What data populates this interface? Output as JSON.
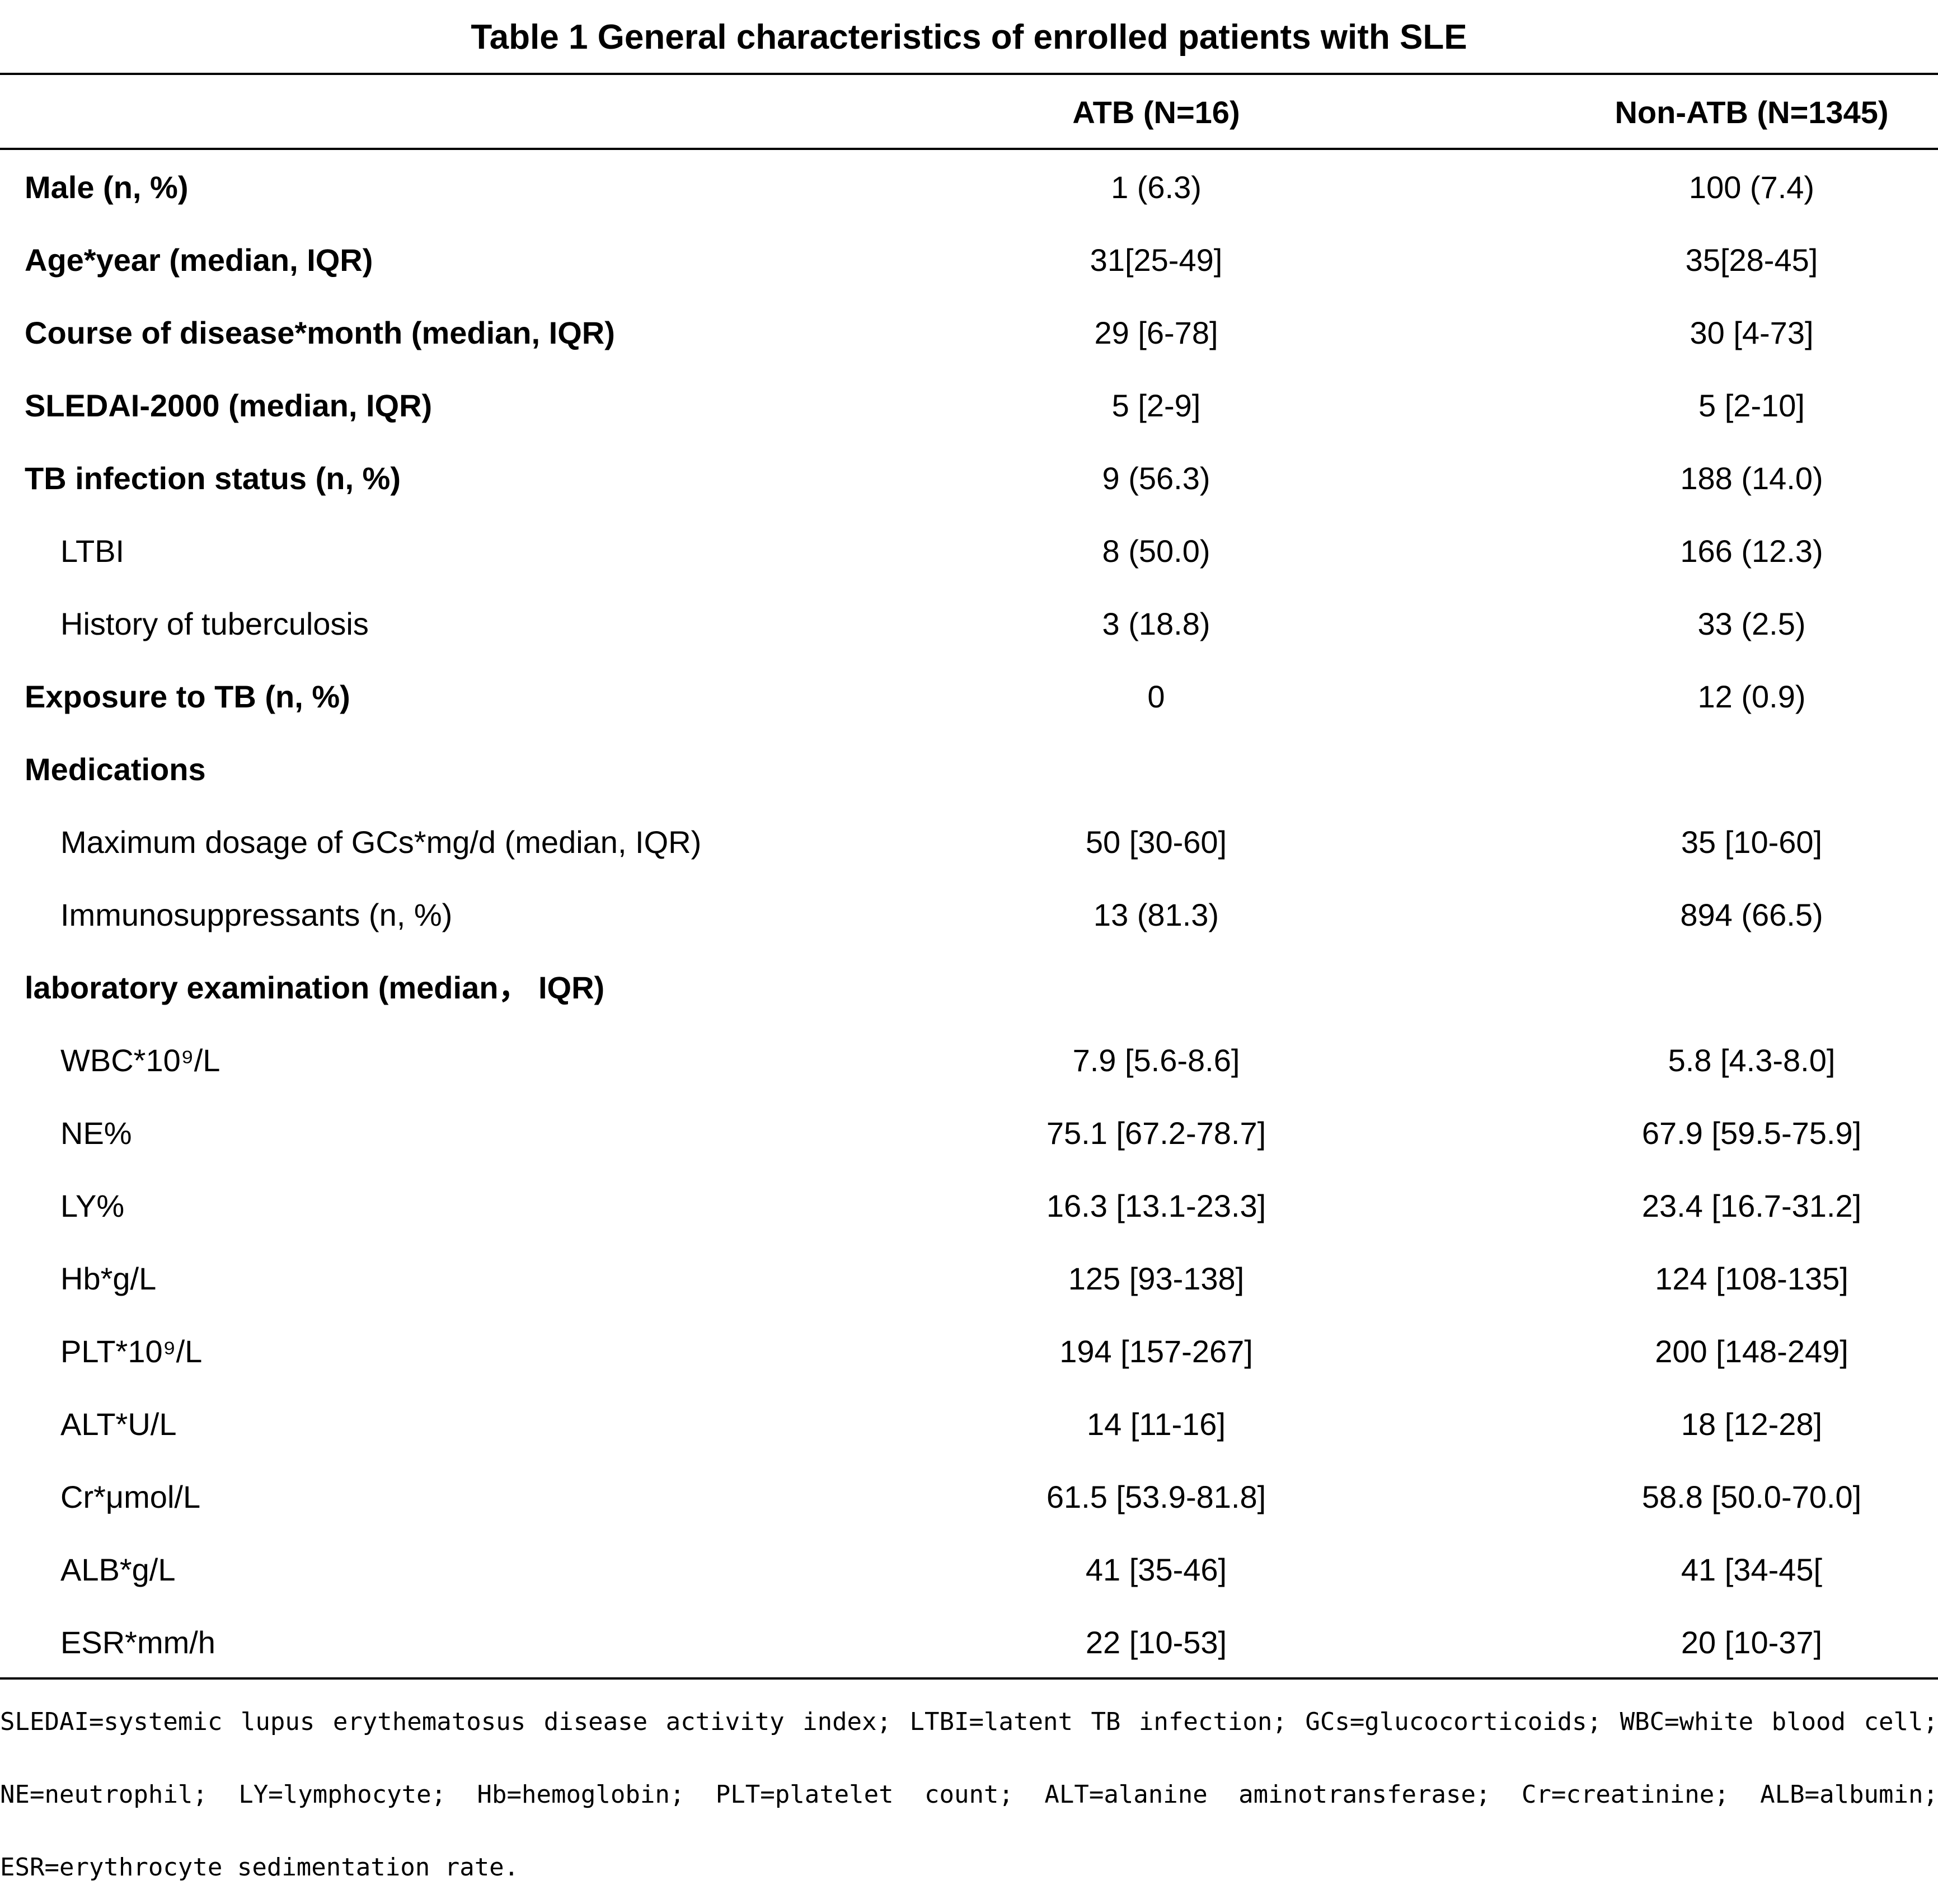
{
  "title": "Table 1 General characteristics of enrolled patients with SLE",
  "columns": [
    "",
    "ATB (N=16)",
    "Non-ATB (N=1345)"
  ],
  "rows": [
    {
      "label": "Male (n, %)",
      "atb": "1 (6.3)",
      "non_atb": "100 (7.4)",
      "bold": true,
      "indent": false
    },
    {
      "label": "Age*year (median, IQR)",
      "atb": "31[25-49]",
      "non_atb": "35[28-45]",
      "bold": true,
      "indent": false
    },
    {
      "label": "Course of disease*month (median, IQR)",
      "atb": "29 [6-78]",
      "non_atb": "30 [4-73]",
      "bold": true,
      "indent": false
    },
    {
      "label": "SLEDAI-2000 (median, IQR)",
      "atb": "5 [2-9]",
      "non_atb": "5 [2-10]",
      "bold": true,
      "indent": false
    },
    {
      "label": "TB infection status (n, %)",
      "atb": "9 (56.3)",
      "non_atb": "188 (14.0)",
      "bold": true,
      "indent": false
    },
    {
      "label": "LTBI",
      "atb": "8 (50.0)",
      "non_atb": "166 (12.3)",
      "bold": false,
      "indent": true
    },
    {
      "label": "History of tuberculosis",
      "atb": "3 (18.8)",
      "non_atb": "33 (2.5)",
      "bold": false,
      "indent": true
    },
    {
      "label": "Exposure to TB (n, %)",
      "atb": "0",
      "non_atb": "12 (0.9)",
      "bold": true,
      "indent": false
    },
    {
      "label": "Medications",
      "atb": "",
      "non_atb": "",
      "bold": true,
      "indent": false
    },
    {
      "label": "Maximum dosage of GCs*mg/d (median, IQR)",
      "atb": "50 [30-60]",
      "non_atb": "35 [10-60]",
      "bold": false,
      "indent": true
    },
    {
      "label": "Immunosuppressants (n, %)",
      "atb": "13 (81.3)",
      "non_atb": "894 (66.5)",
      "bold": false,
      "indent": true
    },
    {
      "label": "laboratory examination (median， IQR)",
      "atb": "",
      "non_atb": "",
      "bold": true,
      "indent": false
    },
    {
      "label": "WBC*10⁹/L",
      "atb": "7.9 [5.6-8.6]",
      "non_atb": "5.8 [4.3-8.0]",
      "bold": false,
      "indent": true
    },
    {
      "label": "NE%",
      "atb": "75.1 [67.2-78.7]",
      "non_atb": "67.9 [59.5-75.9]",
      "bold": false,
      "indent": true
    },
    {
      "label": "LY%",
      "atb": "16.3 [13.1-23.3]",
      "non_atb": "23.4 [16.7-31.2]",
      "bold": false,
      "indent": true
    },
    {
      "label": "Hb*g/L",
      "atb": "125 [93-138]",
      "non_atb": "124 [108-135]",
      "bold": false,
      "indent": true
    },
    {
      "label": "PLT*10⁹/L",
      "atb": "194 [157-267]",
      "non_atb": "200 [148-249]",
      "bold": false,
      "indent": true
    },
    {
      "label": "ALT*U/L",
      "atb": "14 [11-16]",
      "non_atb": "18 [12-28]",
      "bold": false,
      "indent": true
    },
    {
      "label": "Cr*μmol/L",
      "atb": "61.5 [53.9-81.8]",
      "non_atb": "58.8 [50.0-70.0]",
      "bold": false,
      "indent": true
    },
    {
      "label": "ALB*g/L",
      "atb": "41 [35-46]",
      "non_atb": "41 [34-45[",
      "bold": false,
      "indent": true
    },
    {
      "label": "ESR*mm/h",
      "atb": "22 [10-53]",
      "non_atb": "20 [10-37]",
      "bold": false,
      "indent": true
    }
  ],
  "footnote": "SLEDAI=systemic lupus erythematosus disease activity index; LTBI=latent TB infection; GCs=glucocorticoids; WBC=white blood cell; NE=neutrophil; LY=lymphocyte; Hb=hemoglobin; PLT=platelet count; ALT=alanine aminotransferase; Cr=creatinine; ALB=albumin; ESR=erythrocyte sedimentation rate."
}
